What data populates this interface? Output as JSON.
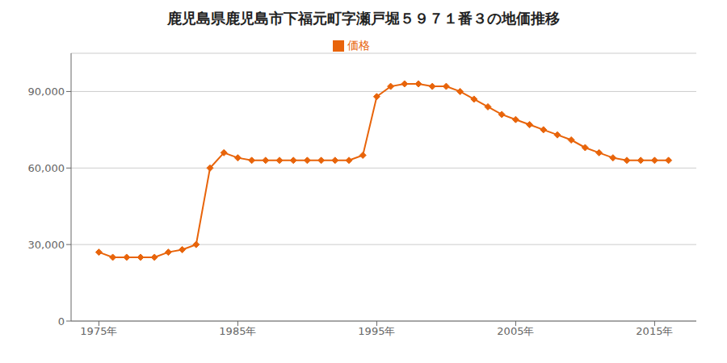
{
  "chart_data": {
    "type": "line",
    "title": "鹿児島県鹿児島市下福元町字瀬戸堀５９７１番３の地価推移",
    "x": [
      1975,
      1976,
      1977,
      1978,
      1979,
      1980,
      1981,
      1982,
      1983,
      1984,
      1985,
      1986,
      1987,
      1988,
      1989,
      1990,
      1991,
      1992,
      1993,
      1994,
      1995,
      1996,
      1997,
      1998,
      1999,
      2000,
      2001,
      2002,
      2003,
      2004,
      2005,
      2006,
      2007,
      2008,
      2009,
      2010,
      2011,
      2012,
      2013,
      2014,
      2015,
      2016
    ],
    "series": [
      {
        "name": "価格",
        "color": "#e8640a",
        "marker": "diamond",
        "values": [
          27000,
          25000,
          25000,
          25000,
          25000,
          27000,
          28000,
          30000,
          60000,
          66000,
          64000,
          63000,
          63000,
          63000,
          63000,
          63000,
          63000,
          63000,
          63000,
          65000,
          88000,
          92000,
          93000,
          93000,
          92000,
          92000,
          90000,
          87000,
          84000,
          81000,
          79000,
          77000,
          75000,
          73000,
          71000,
          68000,
          66000,
          64000,
          63000,
          63000,
          63000,
          63000
        ]
      }
    ],
    "xlim": [
      1973,
      2018
    ],
    "xticks": [
      {
        "value": 1975,
        "label": "1975年"
      },
      {
        "value": 1985,
        "label": "1985年"
      },
      {
        "value": 1995,
        "label": "1995年"
      },
      {
        "value": 2005,
        "label": "2005年"
      },
      {
        "value": 2015,
        "label": "2015年"
      }
    ],
    "ylim": [
      0,
      105000
    ],
    "yticks": [
      0,
      {
        "value": 30000,
        "label": "30,000"
      },
      {
        "value": 60000,
        "label": "60,000"
      },
      {
        "value": 90000,
        "label": "90,000"
      }
    ],
    "grid": true,
    "legend": "top"
  }
}
